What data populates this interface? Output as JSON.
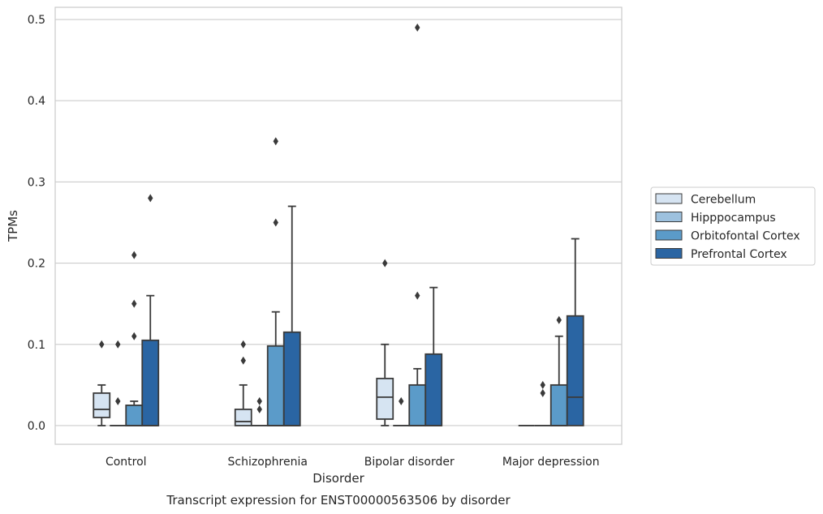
{
  "chart_data": {
    "type": "boxplot",
    "caption": "Transcript expression for ENST00000563506 by disorder",
    "xlabel": "Disorder",
    "ylabel": "TPMs",
    "ylim": [
      -0.023,
      0.515
    ],
    "yticks": [
      0.0,
      0.1,
      0.2,
      0.3,
      0.4,
      0.5
    ],
    "ytick_labels": [
      "0.0",
      "0.1",
      "0.2",
      "0.3",
      "0.4",
      "0.5"
    ],
    "grid": "horizontal",
    "legend_position": "right",
    "categories": [
      "Control",
      "Schizophrenia",
      "Bipolar disorder",
      "Major depression"
    ],
    "series": [
      {
        "name": "Cerebellum",
        "color": "#d6e4f2",
        "boxes": [
          {
            "whislo": 0.0,
            "q1": 0.01,
            "med": 0.02,
            "q3": 0.04,
            "whishi": 0.05,
            "fliers": [
              0.1
            ]
          },
          {
            "whislo": 0.0,
            "q1": 0.0,
            "med": 0.005,
            "q3": 0.02,
            "whishi": 0.05,
            "fliers": [
              0.08,
              0.1
            ]
          },
          {
            "whislo": 0.0,
            "q1": 0.008,
            "med": 0.035,
            "q3": 0.058,
            "whishi": 0.1,
            "fliers": [
              0.2
            ]
          },
          {
            "whislo": 0.0,
            "q1": 0.0,
            "med": 0.0,
            "q3": 0.0,
            "whishi": 0.0,
            "fliers": []
          }
        ]
      },
      {
        "name": "Hipppocampus",
        "color": "#9dc1de",
        "boxes": [
          {
            "whislo": 0.0,
            "q1": 0.0,
            "med": 0.0,
            "q3": 0.0,
            "whishi": 0.0,
            "fliers": [
              0.03,
              0.1
            ]
          },
          {
            "whislo": 0.0,
            "q1": 0.0,
            "med": 0.0,
            "q3": 0.0,
            "whishi": 0.0,
            "fliers": [
              0.02,
              0.03
            ]
          },
          {
            "whislo": 0.0,
            "q1": 0.0,
            "med": 0.0,
            "q3": 0.0,
            "whishi": 0.0,
            "fliers": [
              0.03
            ]
          },
          {
            "whislo": 0.0,
            "q1": 0.0,
            "med": 0.0,
            "q3": 0.0,
            "whishi": 0.0,
            "fliers": [
              0.04,
              0.05
            ]
          }
        ]
      },
      {
        "name": "Orbitofontal Cortex",
        "color": "#5b9bc9",
        "boxes": [
          {
            "whislo": 0.0,
            "q1": 0.0,
            "med": 0.0,
            "q3": 0.025,
            "whishi": 0.03,
            "fliers": [
              0.11,
              0.15,
              0.21
            ]
          },
          {
            "whislo": 0.0,
            "q1": 0.0,
            "med": 0.0,
            "q3": 0.098,
            "whishi": 0.14,
            "fliers": [
              0.25,
              0.35
            ]
          },
          {
            "whislo": 0.0,
            "q1": 0.0,
            "med": 0.0,
            "q3": 0.05,
            "whishi": 0.07,
            "fliers": [
              0.16,
              0.49
            ]
          },
          {
            "whislo": 0.0,
            "q1": 0.0,
            "med": 0.0,
            "q3": 0.05,
            "whishi": 0.11,
            "fliers": [
              0.13
            ]
          }
        ]
      },
      {
        "name": "Prefrontal Cortex",
        "color": "#2a65a3",
        "boxes": [
          {
            "whislo": 0.0,
            "q1": 0.0,
            "med": 0.0,
            "q3": 0.105,
            "whishi": 0.16,
            "fliers": [
              0.28
            ]
          },
          {
            "whislo": 0.0,
            "q1": 0.0,
            "med": 0.0,
            "q3": 0.115,
            "whishi": 0.27,
            "fliers": []
          },
          {
            "whislo": 0.0,
            "q1": 0.0,
            "med": 0.0,
            "q3": 0.088,
            "whishi": 0.17,
            "fliers": []
          },
          {
            "whislo": 0.0,
            "q1": 0.0,
            "med": 0.035,
            "q3": 0.135,
            "whishi": 0.23,
            "fliers": []
          }
        ]
      }
    ]
  }
}
